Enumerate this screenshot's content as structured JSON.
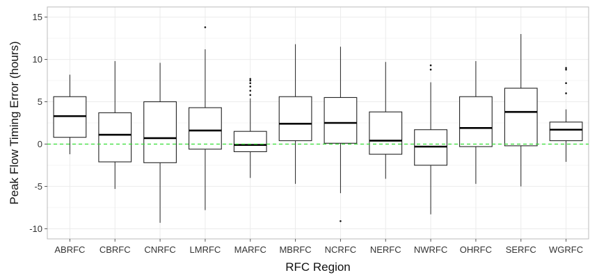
{
  "chart_data": {
    "type": "boxplot",
    "xlabel": "RFC Region",
    "ylabel": "Peak Flow Timing Error (hours)",
    "ylim": [
      -11.2,
      16.2
    ],
    "yticks": [
      -10,
      -5,
      0,
      5,
      10,
      15
    ],
    "categories": [
      "ABRFC",
      "CBRFC",
      "CNRFC",
      "LMRFC",
      "MARFC",
      "MBRFC",
      "NCRFC",
      "NERFC",
      "NWRFC",
      "OHRFC",
      "SERFC",
      "WGRFC"
    ],
    "boxes": [
      {
        "q1": 0.8,
        "median": 3.3,
        "q3": 5.6,
        "whisker_low": -1.2,
        "whisker_high": 8.2,
        "outliers": []
      },
      {
        "q1": -2.1,
        "median": 1.1,
        "q3": 3.7,
        "whisker_low": -5.3,
        "whisker_high": 9.8,
        "outliers": []
      },
      {
        "q1": -2.2,
        "median": 0.7,
        "q3": 5.0,
        "whisker_low": -9.3,
        "whisker_high": 9.6,
        "outliers": []
      },
      {
        "q1": -0.6,
        "median": 1.6,
        "q3": 4.3,
        "whisker_low": -7.8,
        "whisker_high": 11.2,
        "outliers": [
          13.8
        ]
      },
      {
        "q1": -0.9,
        "median": -0.1,
        "q3": 1.5,
        "whisker_low": -4.0,
        "whisker_high": 5.4,
        "outliers": [
          5.8,
          6.3,
          6.8,
          7.2,
          7.5,
          7.7
        ]
      },
      {
        "q1": 0.4,
        "median": 2.4,
        "q3": 5.6,
        "whisker_low": -4.7,
        "whisker_high": 11.8,
        "outliers": []
      },
      {
        "q1": 0.1,
        "median": 2.5,
        "q3": 5.5,
        "whisker_low": -5.8,
        "whisker_high": 11.5,
        "outliers": [
          -9.1
        ]
      },
      {
        "q1": -1.2,
        "median": 0.4,
        "q3": 3.8,
        "whisker_low": -4.1,
        "whisker_high": 9.7,
        "outliers": []
      },
      {
        "q1": -2.5,
        "median": -0.3,
        "q3": 1.7,
        "whisker_low": -8.3,
        "whisker_high": 7.3,
        "outliers": [
          8.8,
          9.3
        ]
      },
      {
        "q1": -0.3,
        "median": 1.9,
        "q3": 5.6,
        "whisker_low": -4.7,
        "whisker_high": 9.8,
        "outliers": []
      },
      {
        "q1": -0.2,
        "median": 3.8,
        "q3": 6.6,
        "whisker_low": -5.0,
        "whisker_high": 13.0,
        "outliers": []
      },
      {
        "q1": 0.4,
        "median": 1.7,
        "q3": 2.6,
        "whisker_low": -2.1,
        "whisker_high": 4.1,
        "outliers": [
          6.0,
          7.2,
          8.8,
          9.0
        ]
      }
    ],
    "reference_line": {
      "y": 0,
      "style": "dashed",
      "color": "#33dd33"
    },
    "grid": true,
    "colors": {
      "box_stroke": "#222222",
      "box_fill": "#ffffff",
      "grid_major": "#ebebeb",
      "grid_minor": "#f5f5f5",
      "panel_border": "#bbbbbb"
    }
  }
}
